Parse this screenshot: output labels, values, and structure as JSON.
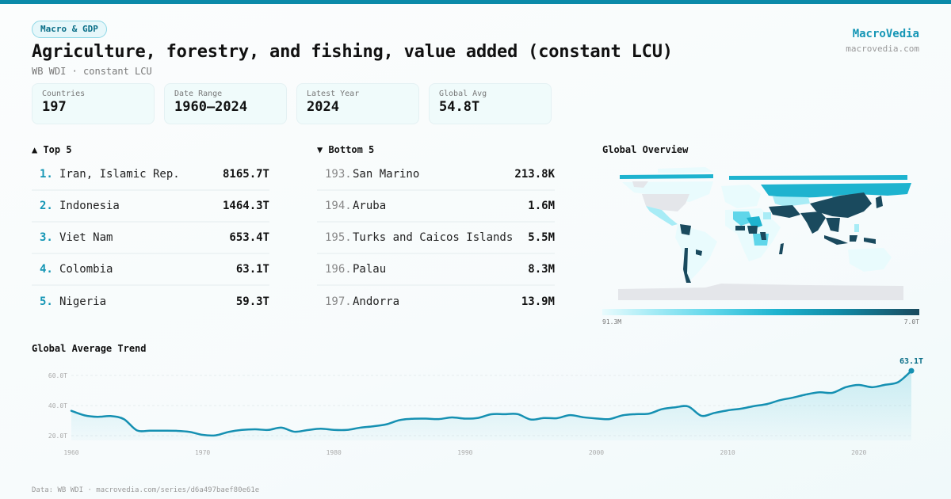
{
  "header": {
    "tag": "Macro & GDP",
    "title": "Agriculture, forestry, and fishing, value added (constant LCU)",
    "subtitle": "WB WDI · constant LCU",
    "brand_name": "MacroVedia",
    "brand_url": "macrovedia.com"
  },
  "stats": [
    {
      "label": "Countries",
      "value": "197"
    },
    {
      "label": "Date Range",
      "value": "1960–2024"
    },
    {
      "label": "Latest Year",
      "value": "2024"
    },
    {
      "label": "Global Avg",
      "value": "54.8T"
    }
  ],
  "top5": {
    "title": "▲ Top 5",
    "items": [
      {
        "rank": "1.",
        "name": "Iran, Islamic Rep.",
        "value": "8165.7T"
      },
      {
        "rank": "2.",
        "name": "Indonesia",
        "value": "1464.3T"
      },
      {
        "rank": "3.",
        "name": "Viet Nam",
        "value": "653.4T"
      },
      {
        "rank": "4.",
        "name": "Colombia",
        "value": "63.1T"
      },
      {
        "rank": "5.",
        "name": "Nigeria",
        "value": "59.3T"
      }
    ]
  },
  "bottom5": {
    "title": "▼ Bottom 5",
    "items": [
      {
        "rank": "193.",
        "name": "San Marino",
        "value": "213.8K"
      },
      {
        "rank": "194.",
        "name": "Aruba",
        "value": "1.6M"
      },
      {
        "rank": "195.",
        "name": "Turks and Caicos Islands",
        "value": "5.5M"
      },
      {
        "rank": "196.",
        "name": "Palau",
        "value": "8.3M"
      },
      {
        "rank": "197.",
        "name": "Andorra",
        "value": "13.9M"
      }
    ]
  },
  "map": {
    "title": "Global Overview",
    "legend_min": "91.3M",
    "legend_max": "7.0T",
    "colors": {
      "no_data": "#e4e6ea",
      "low": "#e9fbfd",
      "mid_low": "#a8ecf6",
      "mid": "#1eb3cf",
      "high": "#1a4a5e"
    }
  },
  "trend": {
    "title": "Global Average Trend",
    "last_label": "63.1T",
    "line_color": "#1590b2"
  },
  "chart_data": {
    "type": "area",
    "title": "Global Average Trend",
    "xlabel": "",
    "ylabel": "",
    "x_ticks": [
      "1960",
      "1970",
      "1980",
      "1990",
      "2000",
      "2010",
      "2020"
    ],
    "y_ticks": [
      "20.0T",
      "40.0T",
      "60.0T"
    ],
    "ylim": [
      14,
      66
    ],
    "grid": true,
    "x": [
      1960,
      1961,
      1962,
      1963,
      1964,
      1965,
      1966,
      1967,
      1968,
      1969,
      1970,
      1971,
      1972,
      1973,
      1974,
      1975,
      1976,
      1977,
      1978,
      1979,
      1980,
      1981,
      1982,
      1983,
      1984,
      1985,
      1986,
      1987,
      1988,
      1989,
      1990,
      1991,
      1992,
      1993,
      1994,
      1995,
      1996,
      1997,
      1998,
      1999,
      2000,
      2001,
      2002,
      2003,
      2004,
      2005,
      2006,
      2007,
      2008,
      2009,
      2010,
      2011,
      2012,
      2013,
      2014,
      2015,
      2016,
      2017,
      2018,
      2019,
      2020,
      2021,
      2022,
      2023,
      2024
    ],
    "values": [
      36.5,
      33.5,
      32.5,
      33.0,
      31.0,
      23.5,
      23.3,
      23.3,
      23.2,
      22.5,
      20.5,
      20.2,
      22.5,
      23.8,
      24.2,
      23.8,
      25.3,
      22.6,
      23.7,
      24.6,
      23.8,
      23.8,
      25.3,
      26.2,
      27.5,
      30.3,
      31.2,
      31.3,
      31.0,
      32.1,
      31.3,
      31.8,
      34.2,
      34.3,
      34.3,
      30.7,
      31.7,
      31.6,
      33.6,
      32.2,
      31.4,
      31.0,
      33.5,
      34.3,
      34.6,
      37.6,
      38.8,
      39.4,
      33.2,
      35.1,
      36.8,
      37.9,
      39.6,
      41.0,
      43.6,
      45.3,
      47.4,
      48.8,
      48.5,
      52.2,
      53.7,
      52.2,
      53.8,
      55.6,
      63.1
    ],
    "annotations": [
      {
        "x": 2024,
        "label": "63.1T"
      }
    ]
  },
  "footer": {
    "text": "Data: WB WDI · macrovedia.com/series/d6a497baef80e61e"
  }
}
